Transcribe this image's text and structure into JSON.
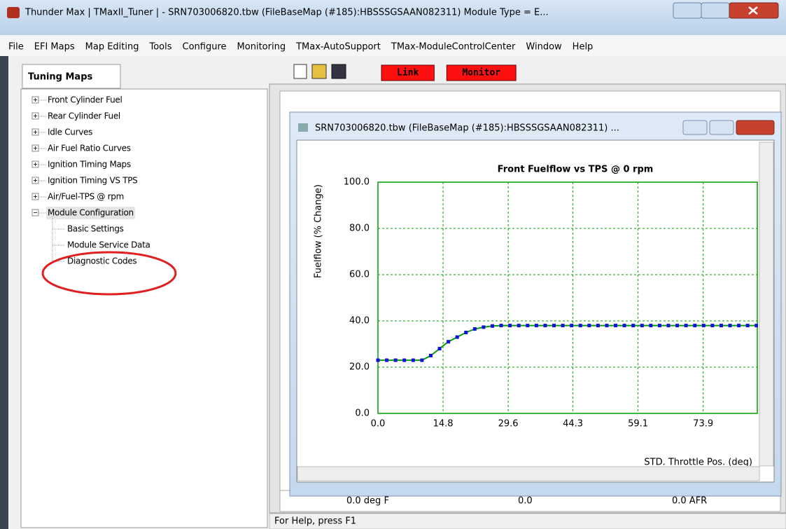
{
  "window": {
    "title": "Thunder Max | TMaxII_Tuner |  - SRN703006820.tbw     (FileBaseMap (#185):HBSSSGSAAN082311) Module Type = E..."
  },
  "menu": [
    "File",
    "EFI Maps",
    "Map Editing",
    "Tools",
    "Configure",
    "Monitoring",
    "TMax-AutoSupport",
    "TMax-ModuleControlCenter",
    "Window",
    "Help"
  ],
  "panel_tab": "Tuning Maps",
  "tree": [
    {
      "label": "Front Cylinder Fuel"
    },
    {
      "label": "Rear Cylinder Fuel"
    },
    {
      "label": "Idle Curves"
    },
    {
      "label": "Air Fuel Ratio Curves"
    },
    {
      "label": "Ignition Timing Maps"
    },
    {
      "label": "Ignition Timing VS TPS"
    },
    {
      "label": "Air/Fuel-TPS @ rpm"
    },
    {
      "label": "Module Configuration",
      "children": [
        "Basic Settings",
        "Module Service Data",
        "Diagnostic Codes"
      ]
    }
  ],
  "toolbar": {
    "buttons": [
      "Link",
      "Monitor"
    ]
  },
  "background_window": {
    "row": [
      "0.0  deg F",
      "0.0",
      "0.0  AFR"
    ]
  },
  "chart_window": {
    "title": "SRN703006820.tbw     (FileBaseMap (#185):HBSSSGSAAN082311) ..."
  },
  "status_bar": "For Help, press F1",
  "chart_data": {
    "type": "line",
    "title": "Front Fuelflow vs TPS @ 0 rpm",
    "y_label": "Fuelflow  (% Change)",
    "x_label": "STD. Throttle Pos. (deg)",
    "x": [
      0,
      2,
      4,
      6,
      8,
      10,
      12,
      14,
      16,
      18,
      20,
      22,
      24,
      26,
      28,
      30,
      32,
      34,
      36,
      38,
      40,
      42,
      44,
      46,
      48,
      50,
      52,
      54,
      56,
      58,
      60,
      62,
      64,
      66,
      68,
      70,
      72,
      74,
      76,
      78,
      80,
      82,
      84,
      86
    ],
    "series": [
      {
        "name": "Front Fuelflow",
        "color": "#1010e0",
        "line_color": "#00a000",
        "values": [
          23,
          23,
          23,
          23,
          23,
          23,
          25,
          28,
          31,
          33,
          35,
          36.5,
          37.3,
          37.8,
          38,
          38,
          38,
          38,
          38,
          38,
          38,
          38,
          38,
          38,
          38,
          38,
          38,
          38,
          38,
          38,
          38,
          38,
          38,
          38,
          38,
          38,
          38,
          38,
          38,
          38,
          38,
          38,
          38,
          38
        ]
      }
    ],
    "xlim": [
      0,
      86.2
    ],
    "ylim": [
      0,
      100
    ],
    "xticks": [
      {
        "value": 0,
        "label": "0.0"
      },
      14.8,
      29.6,
      44.3,
      59.1,
      73.9
    ],
    "yticks": [
      {
        "value": 0,
        "label": "0.0"
      },
      {
        "value": 20,
        "label": "20.0"
      },
      {
        "value": 40,
        "label": "40.0"
      },
      {
        "value": 60,
        "label": "60.0"
      },
      {
        "value": 80,
        "label": "80.0"
      },
      {
        "value": 100,
        "label": "100.0"
      }
    ],
    "grid": true,
    "axis_color": "#00a000",
    "title_color": "#1e8c1e"
  }
}
